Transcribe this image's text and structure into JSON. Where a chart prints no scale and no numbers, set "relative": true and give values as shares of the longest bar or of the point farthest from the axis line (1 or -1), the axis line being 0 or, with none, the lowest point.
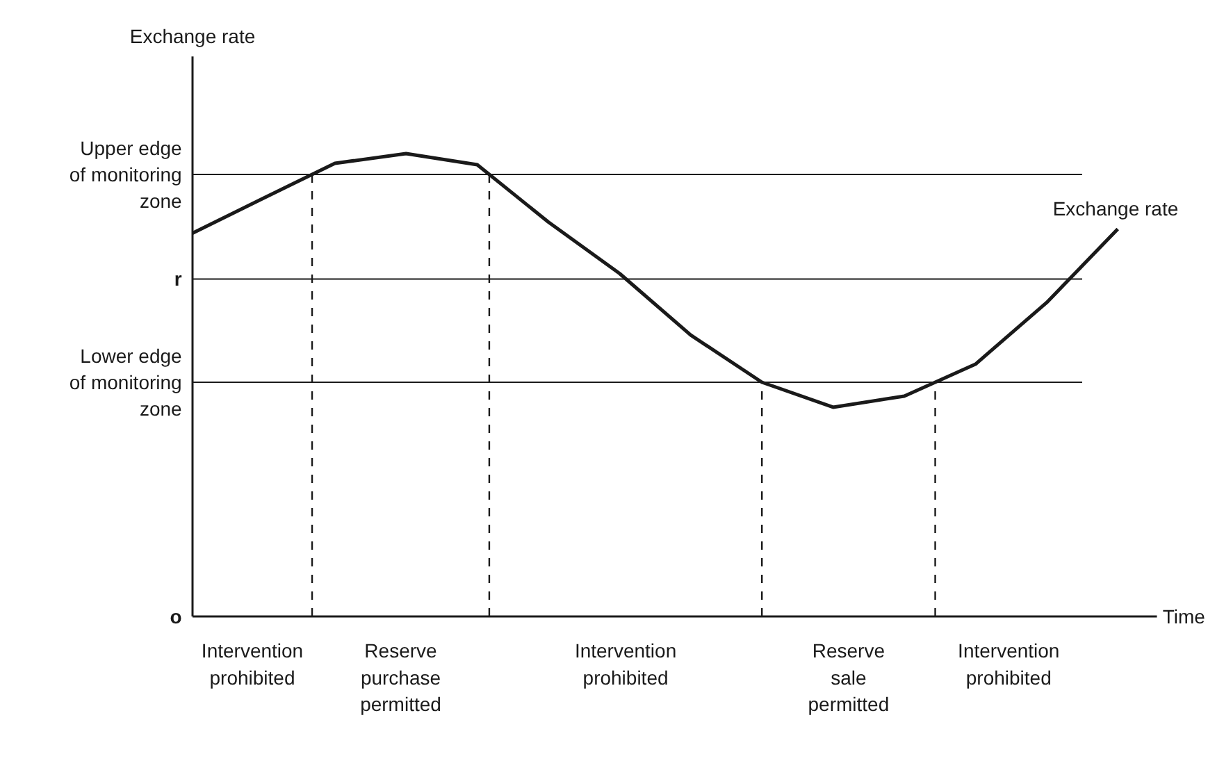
{
  "chart_data": {
    "type": "line",
    "relative": true,
    "xlabel": "Time",
    "line_style": "solid",
    "categories": [
      null,
      null,
      null,
      null,
      null,
      null,
      null,
      null,
      null,
      null,
      null,
      null,
      null,
      null
    ],
    "series": [
      {
        "name": "Exchange rate",
        "color": "#1a1a1a",
        "values": [
          0.828,
          0.904,
          0.979,
          1.0,
          0.976,
          0.852,
          0.741,
          0.608,
          0.506,
          0.452,
          0.476,
          0.545,
          0.678,
          0.837
        ]
      }
    ],
    "ref_lines": [
      {
        "axis": "y",
        "value": 0.955,
        "label": "Upper edge\nof monitoring\nzone",
        "color": "#1a1a1a",
        "line_style": "solid"
      },
      {
        "axis": "y",
        "value": 0.729,
        "label": "r",
        "color": "#1a1a1a",
        "line_style": "solid"
      },
      {
        "axis": "y",
        "value": 0.506,
        "label": "Lower edge\nof monitoring\nzone",
        "color": "#1a1a1a",
        "line_style": "solid"
      }
    ],
    "annotations": [
      "Exchange rate",
      "o",
      "Intervention\nprohibited",
      "Reserve\npurchase\npermitted",
      "Intervention\nprohibited",
      "Reserve\nsale\npermitted",
      "Intervention\nprohibited"
    ]
  }
}
